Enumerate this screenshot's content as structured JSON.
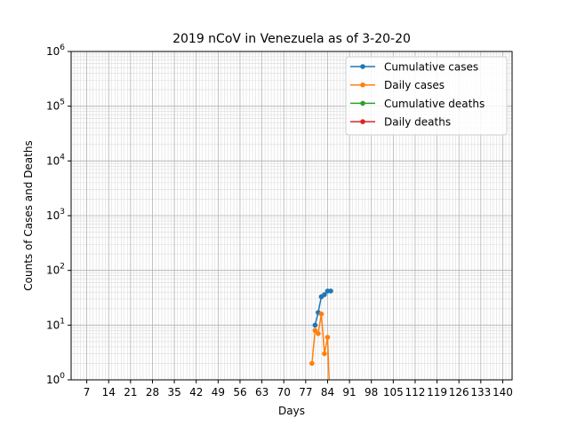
{
  "chart_data": {
    "type": "line",
    "title": "2019 nCoV in Venezuela as of 3-20-20",
    "xlabel": "Days",
    "ylabel": "Counts of Cases and Deaths",
    "xlim": [
      2,
      143
    ],
    "ylim": [
      1,
      1000000
    ],
    "yscale": "log",
    "grid": true,
    "legend_position": "top-right",
    "x_ticks": [
      7,
      14,
      21,
      28,
      35,
      42,
      49,
      56,
      63,
      70,
      77,
      84,
      91,
      98,
      105,
      112,
      119,
      126,
      133,
      140
    ],
    "x_tick_labels": [
      "7",
      "14",
      "21",
      "28",
      "35",
      "42",
      "49",
      "56",
      "63",
      "70",
      "77",
      "84",
      "91",
      "98",
      "105",
      "112",
      "119",
      "126",
      "133",
      "140"
    ],
    "y_ticks": [
      1,
      10,
      100,
      1000,
      10000,
      100000,
      1000000
    ],
    "y_tick_labels": [
      {
        "base": "10",
        "exp": "0"
      },
      {
        "base": "10",
        "exp": "1"
      },
      {
        "base": "10",
        "exp": "2"
      },
      {
        "base": "10",
        "exp": "3"
      },
      {
        "base": "10",
        "exp": "4"
      },
      {
        "base": "10",
        "exp": "5"
      },
      {
        "base": "10",
        "exp": "6"
      }
    ],
    "series": [
      {
        "name": "Cumulative cases",
        "color": "#1f77b4",
        "x": [
          80,
          81,
          82,
          83,
          84,
          85
        ],
        "y": [
          10,
          17,
          33,
          36,
          42,
          42
        ]
      },
      {
        "name": "Daily cases",
        "color": "#ff7f0e",
        "x": [
          79,
          80,
          81,
          82,
          83,
          84,
          85
        ],
        "y": [
          2,
          8,
          7,
          16,
          3,
          6,
          0
        ]
      },
      {
        "name": "Cumulative deaths",
        "color": "#2ca02c",
        "x": [],
        "y": []
      },
      {
        "name": "Daily deaths",
        "color": "#d62728",
        "x": [],
        "y": []
      }
    ]
  }
}
